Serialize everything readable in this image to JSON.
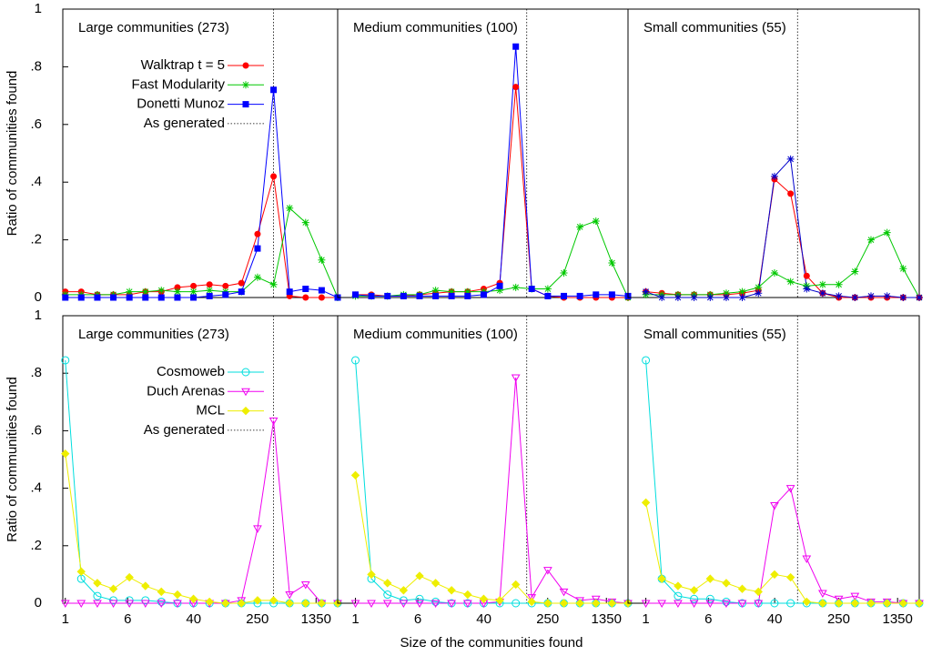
{
  "chart_data": [
    {
      "type": "line",
      "title": "Large communities (273)",
      "y_label": "Ratio of communities found",
      "log_x": true,
      "legend": "top-left",
      "x": [
        1,
        1.58,
        2.51,
        3.98,
        6.31,
        10,
        15.8,
        25.1,
        39.8,
        63.1,
        100,
        158,
        251,
        398,
        631,
        1000,
        1585,
        2512
      ],
      "xlim": [
        0.93,
        2512
      ],
      "ylim": [
        0,
        1
      ],
      "yticks": [
        0,
        {
          "value": 0.2,
          "label": ".2"
        },
        {
          "value": 0.4,
          "label": ".4"
        },
        {
          "value": 0.6,
          "label": ".6"
        },
        {
          "value": 0.8,
          "label": ".8"
        },
        1
      ],
      "reference_line": {
        "name": "As generated",
        "x": 398
      },
      "series": [
        {
          "name": "Walktrap t = 5",
          "color": "#ff0000",
          "marker": "circle",
          "values": [
            0.02,
            0.02,
            0.01,
            0.01,
            0.01,
            0.02,
            0.02,
            0.035,
            0.04,
            0.045,
            0.04,
            0.05,
            0.22,
            0.42,
            0.005,
            0,
            0,
            0
          ]
        },
        {
          "name": "Fast Modularity",
          "color": "#00c800",
          "marker": "asterisk",
          "values": [
            0.01,
            0.01,
            0.01,
            0.01,
            0.02,
            0.02,
            0.025,
            0.02,
            0.02,
            0.025,
            0.02,
            0.02,
            0.07,
            0.045,
            0.31,
            0.26,
            0.13,
            0
          ]
        },
        {
          "name": "Donetti Munoz",
          "color": "#0000ff",
          "marker": "square",
          "values": [
            0,
            0,
            0,
            0,
            0,
            0,
            0,
            0,
            0,
            0.005,
            0.01,
            0.02,
            0.17,
            0.72,
            0.02,
            0.03,
            0.025,
            0
          ]
        }
      ]
    },
    {
      "type": "line",
      "title": "Medium communities (100)",
      "log_x": true,
      "x": [
        1,
        1.58,
        2.51,
        3.98,
        6.31,
        10,
        15.8,
        25.1,
        39.8,
        63.1,
        100,
        158,
        251,
        398,
        631,
        1000,
        1585,
        2512
      ],
      "xlim": [
        0.6,
        2512
      ],
      "ylim": [
        0,
        1
      ],
      "reference_line": {
        "x": 137
      },
      "series": [
        {
          "color": "#ff0000",
          "marker": "circle",
          "values": [
            0.01,
            0.01,
            0.005,
            0.005,
            0.01,
            0.015,
            0.02,
            0.02,
            0.03,
            0.05,
            0.73,
            0.03,
            0.005,
            0,
            0,
            0,
            0,
            0
          ]
        },
        {
          "color": "#00c800",
          "marker": "asterisk",
          "values": [
            0.005,
            0.005,
            0.005,
            0.01,
            0.01,
            0.025,
            0.02,
            0.02,
            0.02,
            0.025,
            0.035,
            0.03,
            0.03,
            0.085,
            0.245,
            0.265,
            0.12,
            0
          ]
        },
        {
          "color": "#0000ff",
          "marker": "square",
          "values": [
            0.01,
            0.005,
            0.005,
            0.005,
            0.005,
            0.005,
            0.005,
            0.005,
            0.01,
            0.04,
            0.87,
            0.03,
            0.005,
            0.005,
            0.005,
            0.01,
            0.01,
            0.005
          ]
        }
      ]
    },
    {
      "type": "line",
      "title": "Small communities (55)",
      "log_x": true,
      "x": [
        1,
        1.58,
        2.51,
        3.98,
        6.31,
        10,
        15.8,
        25.1,
        39.8,
        63.1,
        100,
        158,
        251,
        398,
        631,
        1000,
        1585,
        2512
      ],
      "xlim": [
        0.6,
        2512
      ],
      "ylim": [
        0,
        1
      ],
      "reference_line": {
        "x": 77
      },
      "series": [
        {
          "color": "#ff0000",
          "marker": "circle",
          "values": [
            0.02,
            0.015,
            0.01,
            0.01,
            0.01,
            0.01,
            0.015,
            0.025,
            0.41,
            0.36,
            0.075,
            0.015,
            0,
            0,
            0,
            0,
            0,
            0
          ]
        },
        {
          "color": "#00c800",
          "marker": "asterisk",
          "values": [
            0.01,
            0.01,
            0.01,
            0.01,
            0.01,
            0.015,
            0.02,
            0.035,
            0.085,
            0.055,
            0.04,
            0.045,
            0.045,
            0.09,
            0.2,
            0.225,
            0.1,
            0
          ]
        },
        {
          "color": "#0000cc",
          "marker": "asterisk",
          "values": [
            0.02,
            0,
            0,
            0,
            0,
            0,
            0,
            0.015,
            0.42,
            0.48,
            0.03,
            0.015,
            0.005,
            0,
            0.005,
            0.005,
            0,
            0
          ]
        }
      ]
    },
    {
      "type": "line",
      "title": "Large communities (273)",
      "y_label": "Ratio of communities found",
      "log_x": true,
      "legend": "top-left",
      "x": [
        1,
        1.58,
        2.51,
        3.98,
        6.31,
        10,
        15.8,
        25.1,
        39.8,
        63.1,
        100,
        158,
        251,
        398,
        631,
        1000,
        1585,
        2512
      ],
      "xlim": [
        0.93,
        2512
      ],
      "ylim": [
        0,
        1
      ],
      "yticks": [
        0,
        {
          "value": 0.2,
          "label": ".2"
        },
        {
          "value": 0.4,
          "label": ".4"
        },
        {
          "value": 0.6,
          "label": ".6"
        },
        {
          "value": 0.8,
          "label": ".8"
        },
        1
      ],
      "xticks": [
        1,
        6,
        40,
        250,
        1350
      ],
      "reference_line": {
        "name": "As generated",
        "x": 398
      },
      "series": [
        {
          "name": "Cosmoweb",
          "color": "#00dede",
          "marker": "open-circle",
          "values": [
            0.845,
            0.085,
            0.025,
            0.01,
            0.01,
            0.01,
            0.005,
            0,
            0,
            0,
            0,
            0,
            0,
            0,
            0,
            0,
            0,
            0
          ]
        },
        {
          "name": "Duch Arenas",
          "color": "#f000f0",
          "marker": "open-triangle-down",
          "values": [
            0,
            0,
            0,
            0,
            0,
            0,
            0,
            0,
            0,
            0,
            0,
            0.01,
            0.26,
            0.635,
            0.03,
            0.065,
            0,
            0
          ]
        },
        {
          "name": "MCL",
          "color": "#eeee00",
          "marker": "diamond",
          "values": [
            0.52,
            0.11,
            0.07,
            0.05,
            0.09,
            0.06,
            0.04,
            0.03,
            0.015,
            0.005,
            0,
            0,
            0.01,
            0.01,
            0,
            0,
            0,
            0
          ]
        }
      ]
    },
    {
      "type": "line",
      "title": "Medium communities (100)",
      "log_x": true,
      "x_label": "Size of the communities found",
      "x": [
        1,
        1.58,
        2.51,
        3.98,
        6.31,
        10,
        15.8,
        25.1,
        39.8,
        63.1,
        100,
        158,
        251,
        398,
        631,
        1000,
        1585,
        2512
      ],
      "xlim": [
        0.6,
        2512
      ],
      "ylim": [
        0,
        1
      ],
      "xticks": [
        1,
        6,
        40,
        250,
        1350
      ],
      "reference_line": {
        "x": 137
      },
      "series": [
        {
          "color": "#00dede",
          "marker": "open-circle",
          "values": [
            0.845,
            0.085,
            0.03,
            0.01,
            0.015,
            0.005,
            0,
            0,
            0,
            0,
            0,
            0,
            0,
            0,
            0,
            0,
            0,
            0
          ]
        },
        {
          "color": "#f000f0",
          "marker": "open-triangle-down",
          "values": [
            0,
            0,
            0,
            0,
            0,
            0,
            0,
            0,
            0,
            0.005,
            0.785,
            0.02,
            0.115,
            0.04,
            0.01,
            0.015,
            0.005,
            0
          ]
        },
        {
          "color": "#eeee00",
          "marker": "diamond",
          "values": [
            0.445,
            0.1,
            0.07,
            0.045,
            0.095,
            0.07,
            0.045,
            0.03,
            0.015,
            0.01,
            0.065,
            0.005,
            0,
            0,
            0,
            0,
            0,
            0
          ]
        }
      ]
    },
    {
      "type": "line",
      "title": "Small communities (55)",
      "log_x": true,
      "x": [
        1,
        1.58,
        2.51,
        3.98,
        6.31,
        10,
        15.8,
        25.1,
        39.8,
        63.1,
        100,
        158,
        251,
        398,
        631,
        1000,
        1585,
        2512
      ],
      "xlim": [
        0.6,
        2512
      ],
      "ylim": [
        0,
        1
      ],
      "xticks": [
        1,
        6,
        40,
        250,
        1350
      ],
      "reference_line": {
        "x": 77
      },
      "series": [
        {
          "color": "#00dede",
          "marker": "open-circle",
          "values": [
            0.845,
            0.085,
            0.025,
            0.015,
            0.015,
            0.005,
            0,
            0,
            0,
            0,
            0,
            0,
            0,
            0,
            0,
            0,
            0,
            0
          ]
        },
        {
          "color": "#f000f0",
          "marker": "open-triangle-down",
          "values": [
            0,
            0,
            0,
            0,
            0,
            0,
            0,
            0,
            0.34,
            0.4,
            0.155,
            0.035,
            0.015,
            0.025,
            0.005,
            0.005,
            0,
            0
          ]
        },
        {
          "color": "#eeee00",
          "marker": "diamond",
          "values": [
            0.35,
            0.085,
            0.06,
            0.045,
            0.085,
            0.07,
            0.05,
            0.04,
            0.1,
            0.09,
            0.005,
            0,
            0,
            0,
            0,
            0,
            0,
            0
          ]
        }
      ]
    }
  ]
}
